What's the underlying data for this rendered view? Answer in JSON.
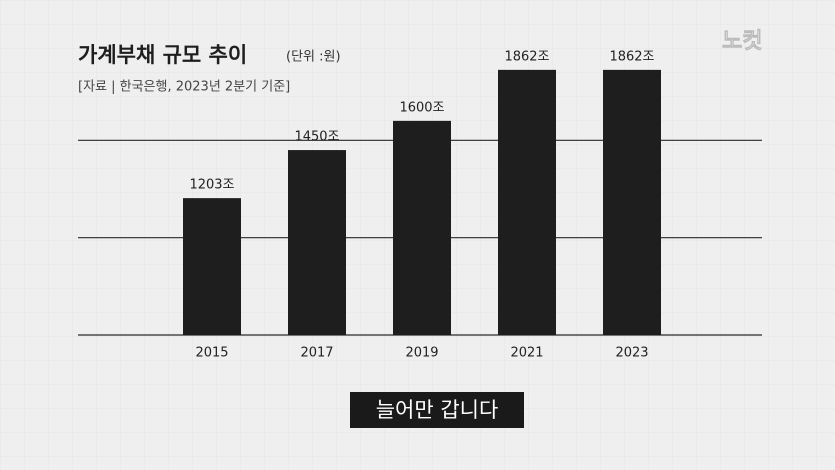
{
  "chart_data": {
    "type": "bar",
    "title": "가계부채 규모 추이",
    "subtitle": "(단위 :원)",
    "source": "[자료 | 한국은행, 2023년 2분기 기준]",
    "caption": "늘어만 갑니다",
    "logo": "노컷",
    "categories": [
      "2015",
      "2017",
      "2019",
      "2021",
      "2023"
    ],
    "values": [
      1203,
      1450,
      1600,
      1862,
      1862
    ],
    "value_labels": [
      "1203조",
      "1450조",
      "1600조",
      "1862조",
      "1862조"
    ],
    "color": "#1e1e1e",
    "ylim": [
      500,
      2000
    ],
    "yticks": [
      500,
      1000,
      1500
    ],
    "grid": true
  }
}
